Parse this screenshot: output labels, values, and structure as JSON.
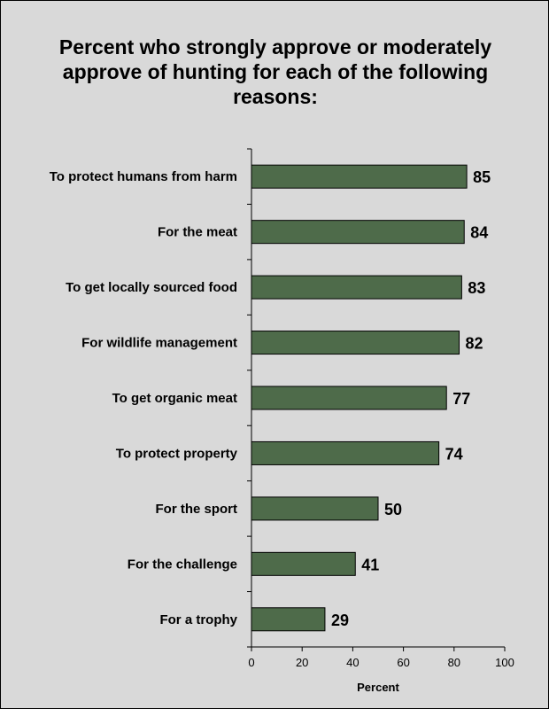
{
  "chart_data": {
    "type": "bar",
    "orientation": "horizontal",
    "title": "Percent who strongly approve or moderately approve of hunting for each of the following reasons:",
    "categories": [
      "To protect humans from harm",
      "For the meat",
      "To get locally sourced food",
      "For wildlife management",
      "To get organic meat",
      "To protect property",
      "For the sport",
      "For the challenge",
      "For a trophy"
    ],
    "values": [
      85,
      84,
      83,
      82,
      77,
      74,
      50,
      41,
      29
    ],
    "xlabel": "Percent",
    "ylabel": "",
    "xlim": [
      0,
      100
    ],
    "xticks": [
      0,
      20,
      40,
      60,
      80,
      100
    ],
    "grid": false,
    "bar_color": "#4e6b4a"
  }
}
